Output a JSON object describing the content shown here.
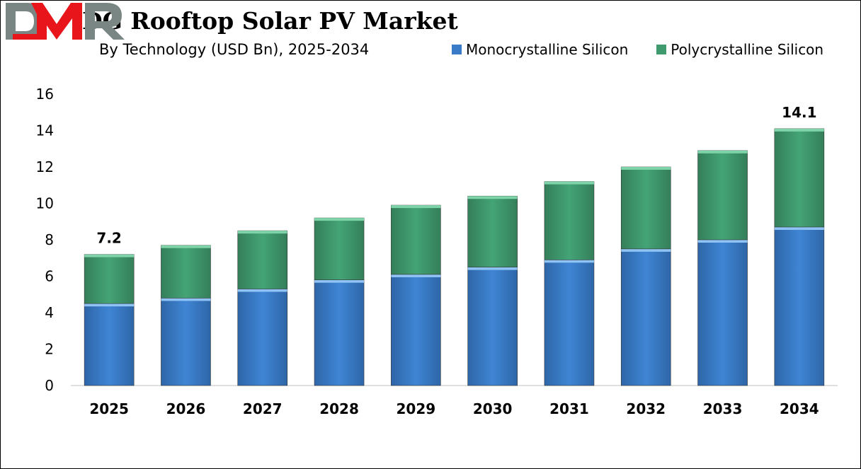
{
  "chart_data": {
    "type": "bar",
    "stacked": true,
    "title": "DG Rooftop Solar PV Market",
    "subtitle": "By Technology (USD Bn), 2025-2034",
    "categories": [
      "2025",
      "2026",
      "2027",
      "2028",
      "2029",
      "2030",
      "2031",
      "2032",
      "2033",
      "2034"
    ],
    "series": [
      {
        "name": "Monocrystalline Silicon",
        "color": "#3a7bc8",
        "values": [
          4.5,
          4.8,
          5.3,
          5.8,
          6.1,
          6.5,
          6.9,
          7.5,
          8.0,
          8.7
        ]
      },
      {
        "name": "Polycrystalline Silicon",
        "color": "#3f9a6e",
        "values": [
          2.7,
          2.9,
          3.2,
          3.4,
          3.8,
          3.9,
          4.3,
          4.5,
          4.9,
          5.4
        ]
      }
    ],
    "data_labels": [
      {
        "category": "2025",
        "text": "7.2"
      },
      {
        "category": "2034",
        "text": "14.1"
      }
    ],
    "ylim": [
      0,
      16
    ],
    "yticks": [
      0,
      2,
      4,
      6,
      8,
      10,
      12,
      14,
      16
    ],
    "grid": false,
    "legend_position": "top-right",
    "xlabel": "",
    "ylabel": ""
  },
  "logo": {
    "text": "DMR",
    "colors": [
      "#7a8683",
      "#e8161b"
    ]
  }
}
